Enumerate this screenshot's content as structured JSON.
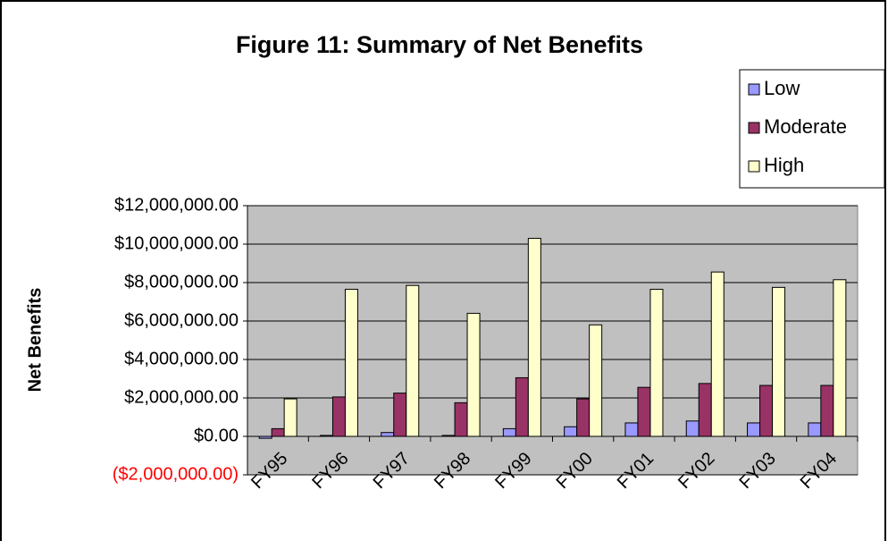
{
  "chart_data": {
    "type": "bar",
    "title": "Figure 11: Summary of Net Benefits",
    "y_label": "Net Benefits",
    "categories": [
      "FY95",
      "FY96",
      "FY97",
      "FY98",
      "FY99",
      "FY00",
      "FY01",
      "FY02",
      "FY03",
      "FY04"
    ],
    "series": [
      {
        "name": "Low",
        "color": "#9999ff",
        "values": [
          -100000,
          50000,
          200000,
          50000,
          400000,
          500000,
          700000,
          800000,
          700000,
          700000
        ]
      },
      {
        "name": "Moderate",
        "color": "#993366",
        "values": [
          400000,
          2050000,
          2250000,
          1750000,
          3050000,
          1950000,
          2550000,
          2750000,
          2650000,
          2650000
        ]
      },
      {
        "name": "High",
        "color": "#ffffcc",
        "values": [
          1950000,
          7650000,
          7850000,
          6400000,
          10300000,
          5800000,
          7650000,
          8550000,
          7750000,
          8150000
        ]
      }
    ],
    "ylim": [
      -2000000,
      12000000
    ],
    "yticks": [
      {
        "value": -2000000,
        "label": "($2,000,000.00)"
      },
      {
        "value": 0,
        "label": "$0.00"
      },
      {
        "value": 2000000,
        "label": "$2,000,000.00"
      },
      {
        "value": 4000000,
        "label": "$4,000,000.00"
      },
      {
        "value": 6000000,
        "label": "$6,000,000.00"
      },
      {
        "value": 8000000,
        "label": "$8,000,000.00"
      },
      {
        "value": 10000000,
        "label": "$10,000,000.00"
      },
      {
        "value": 12000000,
        "label": "$12,000,000.00"
      }
    ],
    "negative_tick_color": "#ff0000",
    "plot_background": "#c0c0c0",
    "grid": true,
    "legend": "top-right"
  }
}
